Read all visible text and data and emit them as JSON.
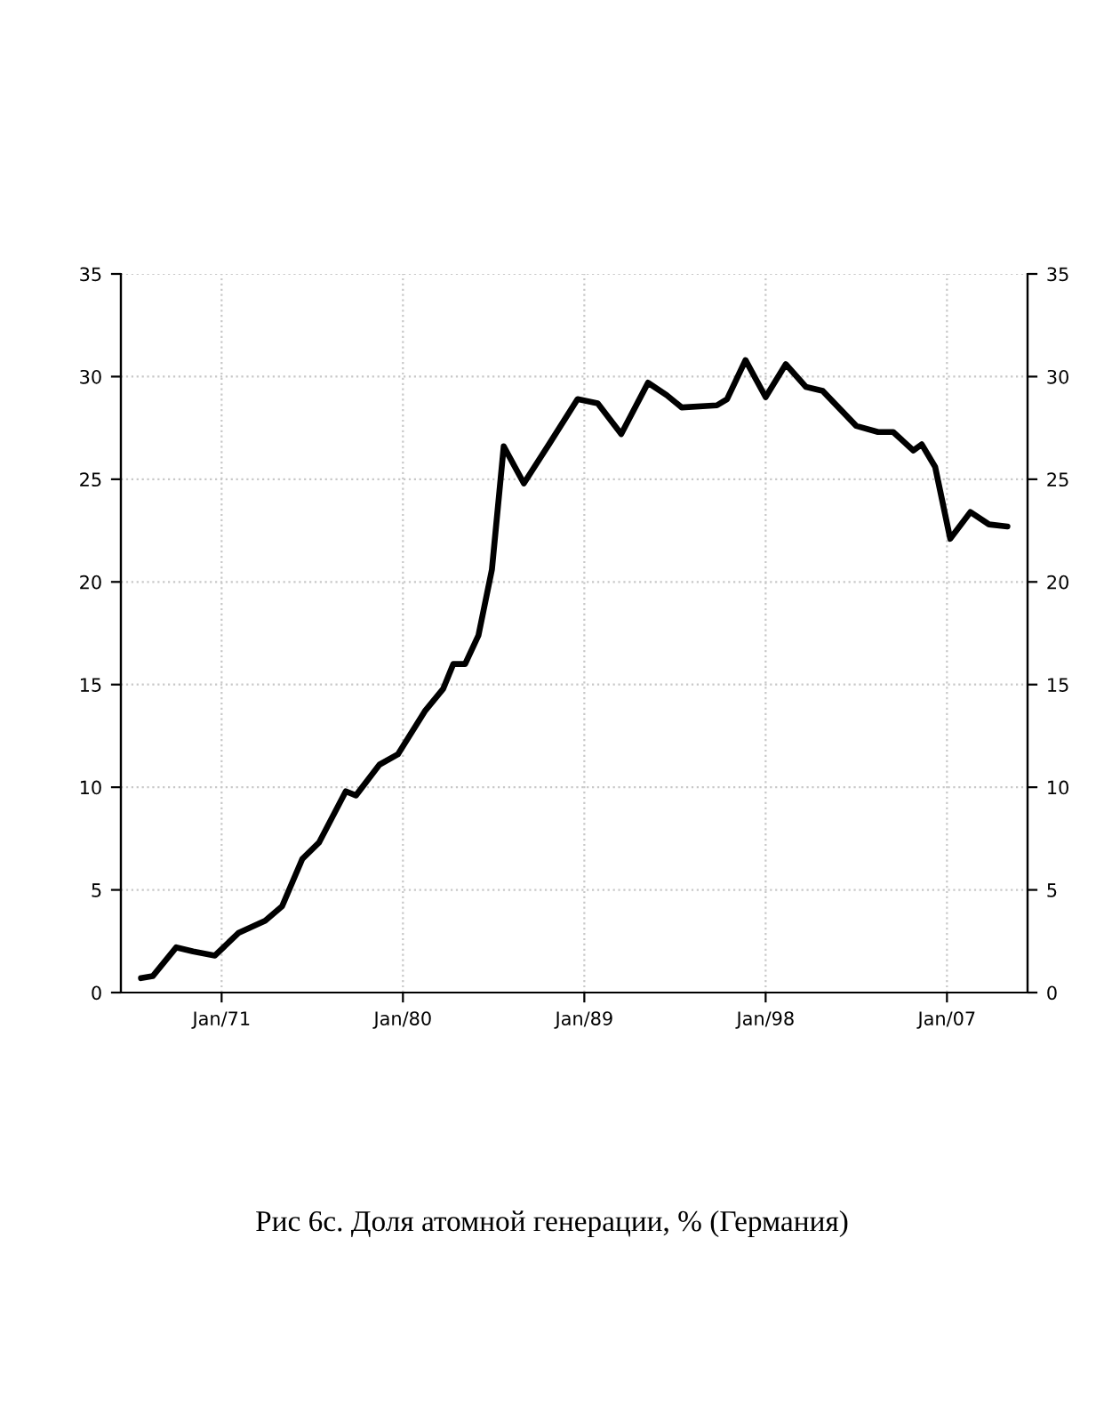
{
  "chart_data": {
    "type": "line",
    "x": [
      "1967-01",
      "1967-08",
      "1968-10",
      "1969-08",
      "1970-09",
      "1971-11",
      "1973-03",
      "1974-01",
      "1975-01",
      "1975-11",
      "1977-03",
      "1977-09",
      "1978-11",
      "1979-10",
      "1981-02",
      "1982-01",
      "1982-07",
      "1983-02",
      "1983-10",
      "1984-06",
      "1985-01",
      "1986-01",
      "1987-04",
      "1988-09",
      "1989-09",
      "1990-11",
      "1992-03",
      "1993-02",
      "1993-11",
      "1995-08",
      "1996-02",
      "1997-01",
      "1998-01",
      "1999-01",
      "2000-01",
      "2000-11",
      "2002-07",
      "2003-08",
      "2004-05",
      "2005-05",
      "2005-10",
      "2006-06",
      "2007-03",
      "2008-03",
      "2009-02",
      "2010-01"
    ],
    "series": [
      {
        "color": "#000000",
        "values": [
          0.7,
          0.8,
          2.2,
          2.0,
          1.8,
          2.9,
          3.5,
          4.2,
          6.5,
          7.3,
          9.8,
          9.6,
          11.1,
          11.6,
          13.7,
          14.8,
          16.0,
          16.0,
          17.4,
          20.6,
          26.6,
          24.8,
          26.7,
          28.9,
          28.7,
          27.2,
          29.7,
          29.1,
          28.5,
          28.6,
          28.9,
          30.8,
          29.0,
          30.6,
          29.5,
          29.3,
          27.6,
          27.3,
          27.3,
          26.4,
          26.7,
          25.6,
          22.1,
          23.4,
          22.8,
          22.7
        ]
      }
    ],
    "xlim": [
      "1966-01",
      "2011-01"
    ],
    "xticks": [
      {
        "value": "1971-01",
        "label": "Jan/71"
      },
      {
        "value": "1980-01",
        "label": "Jan/80"
      },
      {
        "value": "1989-01",
        "label": "Jan/89"
      },
      {
        "value": "1998-01",
        "label": "Jan/98"
      },
      {
        "value": "2007-01",
        "label": "Jan/07"
      }
    ],
    "ylim": [
      0,
      35
    ],
    "yticks": [
      0,
      5,
      10,
      15,
      20,
      25,
      30,
      35
    ],
    "y2lim": [
      0,
      35
    ],
    "y2ticks": [
      0,
      5,
      10,
      15,
      20,
      25,
      30,
      35
    ],
    "grid": true,
    "line_style": "solid",
    "annotations": [
      "Рис 6с. Доля атомной генерации, % (Германия)"
    ]
  }
}
